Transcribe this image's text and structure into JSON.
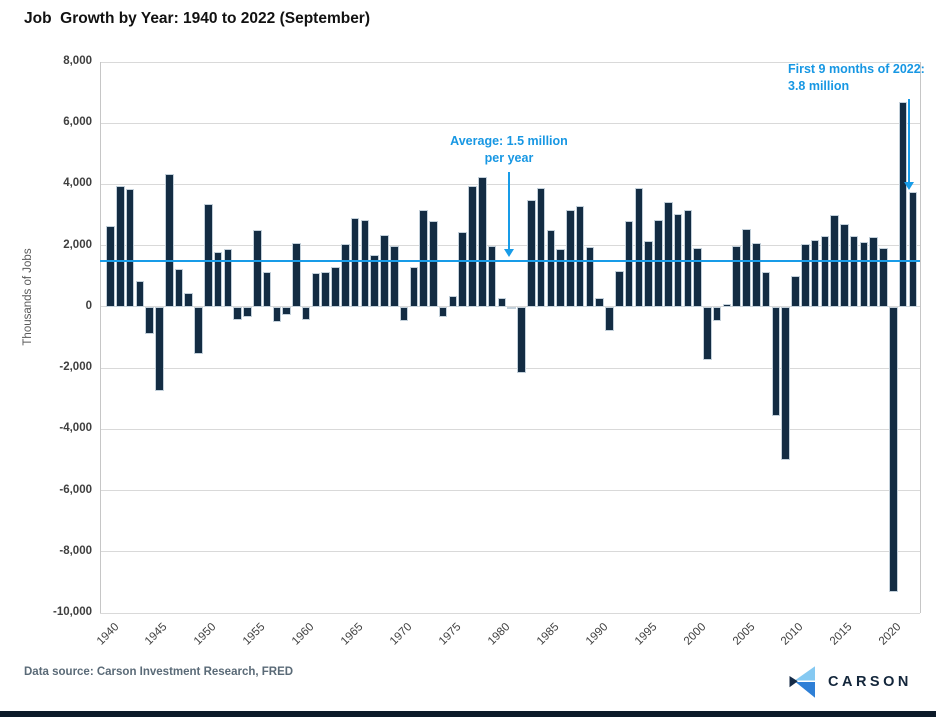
{
  "title": "Job  Growth by Year: 1940 to 2022 (September)",
  "chart_data": {
    "type": "bar",
    "title": "Job Growth by Year: 1940 to 2022 (September)",
    "xlabel": "",
    "ylabel": "Thousands of Jobs",
    "ylim": [
      -10000,
      8000
    ],
    "ytick_interval": 2000,
    "grid": true,
    "bar_color": "#132c43",
    "accent_blue": "#189ce8",
    "years": [
      1940,
      1941,
      1942,
      1943,
      1944,
      1945,
      1946,
      1947,
      1948,
      1949,
      1950,
      1951,
      1952,
      1953,
      1954,
      1955,
      1956,
      1957,
      1958,
      1959,
      1960,
      1961,
      1962,
      1963,
      1964,
      1965,
      1966,
      1967,
      1968,
      1969,
      1970,
      1971,
      1972,
      1973,
      1974,
      1975,
      1976,
      1977,
      1978,
      1979,
      1980,
      1981,
      1982,
      1983,
      1984,
      1985,
      1986,
      1987,
      1988,
      1989,
      1990,
      1991,
      1992,
      1993,
      1994,
      1995,
      1996,
      1997,
      1998,
      1999,
      2000,
      2001,
      2002,
      2003,
      2004,
      2005,
      2006,
      2007,
      2008,
      2009,
      2010,
      2011,
      2012,
      2013,
      2014,
      2015,
      2016,
      2017,
      2018,
      2019,
      2020,
      2021,
      2022
    ],
    "values": [
      2650,
      3950,
      3850,
      850,
      -900,
      -2750,
      4350,
      1230,
      450,
      -1540,
      3350,
      1800,
      1900,
      -430,
      -330,
      2500,
      1130,
      -500,
      -270,
      2100,
      -430,
      1100,
      1150,
      1300,
      2050,
      2900,
      2850,
      1700,
      2350,
      2000,
      -450,
      1300,
      3150,
      2800,
      -340,
      350,
      2450,
      3950,
      4250,
      2000,
      300,
      -60,
      -2150,
      3500,
      3890,
      2500,
      1900,
      3150,
      3280,
      1950,
      300,
      -800,
      1180,
      2800,
      3870,
      2150,
      2830,
      3420,
      3050,
      3170,
      1940,
      -1750,
      -470,
      110,
      2000,
      2550,
      2100,
      1130,
      -3550,
      -5000,
      1000,
      2050,
      2170,
      2300,
      3000,
      2700,
      2330,
      2110,
      2290,
      1930,
      -9300,
      6700,
      3750
    ],
    "xtick_labels": [
      "1940",
      "1945",
      "1950",
      "1955",
      "1960",
      "1965",
      "1970",
      "1975",
      "1980",
      "1985",
      "1990",
      "1995",
      "2000",
      "2005",
      "2010",
      "2015",
      "2020"
    ],
    "ytick_labels": [
      "8,000",
      "6,000",
      "4,000",
      "2,000",
      "0",
      "-2,000",
      "-4,000",
      "-6,000",
      "-8,000",
      "-10,000"
    ],
    "ytick_values": [
      8000,
      6000,
      4000,
      2000,
      0,
      -2000,
      -4000,
      -6000,
      -8000,
      -10000
    ],
    "average_line": {
      "value": 1500,
      "label_lines": [
        "Average: 1.5 million",
        "per year"
      ]
    },
    "annotations": [
      {
        "id": "average",
        "lines": [
          "Average: 1.5 million",
          "per year"
        ],
        "points_to": "average line (1,500)"
      },
      {
        "id": "first-9-months-2022",
        "lines": [
          "First 9 months of 2022:",
          "3.8 million"
        ],
        "points_to": "2022 bar (3,750)"
      }
    ]
  },
  "footer": {
    "source": "Data source: Carson Investment Research, FRED",
    "brand": "CARSON"
  }
}
